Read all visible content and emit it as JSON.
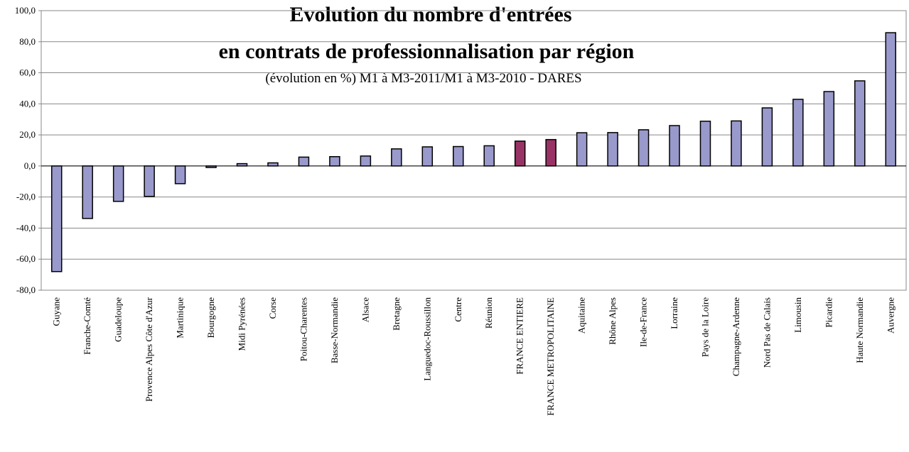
{
  "chart_data": {
    "type": "bar",
    "title": [
      "Evolution du nombre d'entrées",
      "en contrats de professionnalisation par région"
    ],
    "subtitle": "(évolution en %) M1 à M3-2011/M1 à M3-2010 - DARES",
    "categories": [
      "Guyane",
      "Franche-Comté",
      "Guadeloupe",
      "Provence Alpes Côte d'Azur",
      "Martinique",
      "Bourgogne",
      "Midi Pyrénées",
      "Corse",
      "Poitou-Charentes",
      "Basse-Normandie",
      "Alsace",
      "Bretagne",
      "Languedoc-Roussillon",
      "Centre",
      "Réunion",
      "FRANCE ENTIERE",
      "FRANCE METROPOLITAINE",
      "Aquitaine",
      "Rhône Alpes",
      "Ile-de-France",
      "Lorraine",
      "Pays de la Loire",
      "Champagne-Ardenne",
      "Nord Pas de Calais",
      "Limousin",
      "Picardie",
      "Haute Normandie",
      "Auvergne"
    ],
    "values": [
      -68,
      -33.8,
      -22.8,
      -19.6,
      -11.4,
      -1,
      1.5,
      2,
      5.7,
      6,
      6.4,
      11,
      12.3,
      12.5,
      13,
      16,
      17,
      21.4,
      21.5,
      23.3,
      26,
      28.8,
      29,
      37.4,
      42.9,
      47.9,
      54.8,
      85.8
    ],
    "colors": [
      "#9999cc",
      "#9999cc",
      "#9999cc",
      "#9999cc",
      "#9999cc",
      "#9999cc",
      "#9999cc",
      "#9999cc",
      "#9999cc",
      "#9999cc",
      "#9999cc",
      "#9999cc",
      "#9999cc",
      "#9999cc",
      "#9999cc",
      "#993366",
      "#993366",
      "#9999cc",
      "#9999cc",
      "#9999cc",
      "#9999cc",
      "#9999cc",
      "#9999cc",
      "#9999cc",
      "#9999cc",
      "#9999cc",
      "#9999cc",
      "#9999cc"
    ],
    "ylim": [
      -80,
      100
    ],
    "yticks": [
      {
        "value": -80,
        "label": "-80,0"
      },
      {
        "value": -60,
        "label": "-60,0"
      },
      {
        "value": -40,
        "label": "-40,0"
      },
      {
        "value": -20,
        "label": "-20,0"
      },
      {
        "value": 0,
        "label": "0,0"
      },
      {
        "value": 20,
        "label": "20,0"
      },
      {
        "value": 40,
        "label": "40,0"
      },
      {
        "value": 60,
        "label": "60,0"
      },
      {
        "value": 80,
        "label": "80,0"
      },
      {
        "value": 100,
        "label": "100,0"
      }
    ],
    "grid": true
  }
}
